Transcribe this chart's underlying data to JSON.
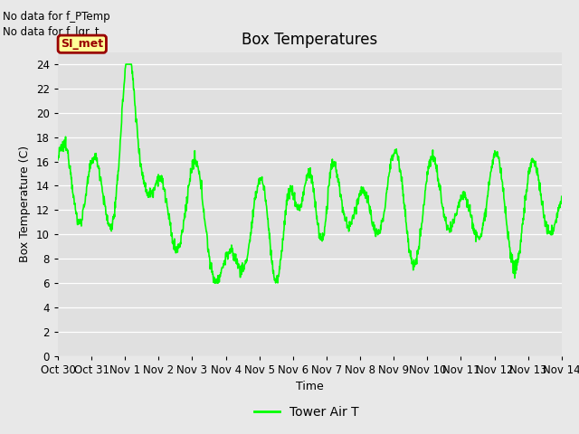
{
  "title": "Box Temperatures",
  "xlabel": "Time",
  "ylabel": "Box Temperature (C)",
  "ylim": [
    0,
    25
  ],
  "yticks": [
    0,
    2,
    4,
    6,
    8,
    10,
    12,
    14,
    16,
    18,
    20,
    22,
    24
  ],
  "x_labels": [
    "Oct 30",
    "Oct 31",
    "Nov 1",
    "Nov 2",
    "Nov 3",
    "Nov 4",
    "Nov 5",
    "Nov 6",
    "Nov 7",
    "Nov 8",
    "Nov 9",
    "Nov 10",
    "Nov 11",
    "Nov 12",
    "Nov 13",
    "Nov 14"
  ],
  "line_color": "#00ff00",
  "line_width": 1.2,
  "bg_color": "#e8e8e8",
  "plot_bg_color": "#e0e0e0",
  "annotation_text1": "No data for f_PTemp",
  "annotation_text2": "No data for f_lgr_t",
  "legend_label": "Tower Air T",
  "box_label": "SI_met",
  "box_label_color": "#990000",
  "box_bg_color": "#ffff99",
  "title_fontsize": 12,
  "label_fontsize": 9,
  "tick_fontsize": 8.5
}
